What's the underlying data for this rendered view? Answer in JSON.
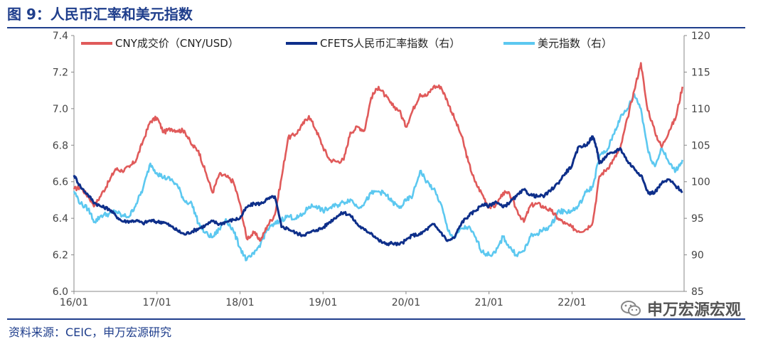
{
  "title": "图 9：人民币汇率和美元指数",
  "source": "资料来源：CEIC，申万宏源研究",
  "watermark": "申万宏源宏观",
  "chart_data": {
    "type": "line",
    "xlabels": [
      "16/01",
      "17/01",
      "18/01",
      "19/01",
      "20/01",
      "21/01",
      "22/01"
    ],
    "x_ticks": [
      2016,
      2017,
      2018,
      2019,
      2020,
      2021,
      2022
    ],
    "xlim": [
      2016,
      2023.35
    ],
    "left_axis": {
      "ylim": [
        6.0,
        7.4
      ],
      "ticks": [
        "6.0",
        "6.2",
        "6.4",
        "6.6",
        "6.8",
        "7.0",
        "7.2",
        "7.4"
      ]
    },
    "right_axis": {
      "ylim": [
        85,
        120
      ],
      "ticks": [
        "85",
        "90",
        "95",
        "100",
        "105",
        "110",
        "115",
        "120"
      ]
    },
    "series": [
      {
        "name": "CNY成交价（CNY/USD）",
        "axis": "left",
        "color": "#e05a5a",
        "points": [
          [
            2016.0,
            6.56
          ],
          [
            2016.08,
            6.57
          ],
          [
            2016.17,
            6.52
          ],
          [
            2016.25,
            6.47
          ],
          [
            2016.33,
            6.53
          ],
          [
            2016.42,
            6.6
          ],
          [
            2016.5,
            6.67
          ],
          [
            2016.58,
            6.66
          ],
          [
            2016.67,
            6.68
          ],
          [
            2016.75,
            6.72
          ],
          [
            2016.83,
            6.82
          ],
          [
            2016.92,
            6.93
          ],
          [
            2017.0,
            6.95
          ],
          [
            2017.08,
            6.87
          ],
          [
            2017.17,
            6.89
          ],
          [
            2017.25,
            6.88
          ],
          [
            2017.33,
            6.88
          ],
          [
            2017.42,
            6.8
          ],
          [
            2017.5,
            6.77
          ],
          [
            2017.58,
            6.66
          ],
          [
            2017.67,
            6.54
          ],
          [
            2017.75,
            6.64
          ],
          [
            2017.83,
            6.63
          ],
          [
            2017.92,
            6.6
          ],
          [
            2018.0,
            6.48
          ],
          [
            2018.08,
            6.29
          ],
          [
            2018.17,
            6.32
          ],
          [
            2018.25,
            6.28
          ],
          [
            2018.33,
            6.36
          ],
          [
            2018.42,
            6.42
          ],
          [
            2018.5,
            6.62
          ],
          [
            2018.58,
            6.84
          ],
          [
            2018.67,
            6.86
          ],
          [
            2018.75,
            6.91
          ],
          [
            2018.83,
            6.96
          ],
          [
            2018.92,
            6.88
          ],
          [
            2019.0,
            6.79
          ],
          [
            2019.08,
            6.72
          ],
          [
            2019.17,
            6.71
          ],
          [
            2019.25,
            6.72
          ],
          [
            2019.33,
            6.87
          ],
          [
            2019.42,
            6.9
          ],
          [
            2019.5,
            6.88
          ],
          [
            2019.58,
            7.06
          ],
          [
            2019.67,
            7.12
          ],
          [
            2019.75,
            7.07
          ],
          [
            2019.83,
            7.02
          ],
          [
            2019.92,
            6.99
          ],
          [
            2020.0,
            6.9
          ],
          [
            2020.08,
            6.99
          ],
          [
            2020.17,
            7.08
          ],
          [
            2020.25,
            7.07
          ],
          [
            2020.33,
            7.12
          ],
          [
            2020.42,
            7.12
          ],
          [
            2020.5,
            7.04
          ],
          [
            2020.58,
            6.95
          ],
          [
            2020.67,
            6.85
          ],
          [
            2020.75,
            6.71
          ],
          [
            2020.83,
            6.6
          ],
          [
            2020.92,
            6.53
          ],
          [
            2021.0,
            6.46
          ],
          [
            2021.08,
            6.47
          ],
          [
            2021.17,
            6.54
          ],
          [
            2021.25,
            6.53
          ],
          [
            2021.33,
            6.45
          ],
          [
            2021.42,
            6.38
          ],
          [
            2021.5,
            6.47
          ],
          [
            2021.58,
            6.48
          ],
          [
            2021.67,
            6.46
          ],
          [
            2021.75,
            6.44
          ],
          [
            2021.83,
            6.4
          ],
          [
            2021.92,
            6.37
          ],
          [
            2022.0,
            6.35
          ],
          [
            2022.08,
            6.33
          ],
          [
            2022.17,
            6.34
          ],
          [
            2022.25,
            6.38
          ],
          [
            2022.33,
            6.63
          ],
          [
            2022.42,
            6.67
          ],
          [
            2022.5,
            6.72
          ],
          [
            2022.58,
            6.78
          ],
          [
            2022.67,
            6.95
          ],
          [
            2022.75,
            7.1
          ],
          [
            2022.83,
            7.25
          ],
          [
            2022.9,
            7.02
          ],
          [
            2023.0,
            6.87
          ],
          [
            2023.08,
            6.79
          ],
          [
            2023.17,
            6.88
          ],
          [
            2023.25,
            6.95
          ],
          [
            2023.33,
            7.12
          ]
        ]
      },
      {
        "name": "CFETS人民币汇率指数（右）",
        "axis": "right",
        "color": "#0e2f8a",
        "points": [
          [
            2016.0,
            100.9
          ],
          [
            2016.08,
            99.3
          ],
          [
            2016.17,
            98.2
          ],
          [
            2016.25,
            97.1
          ],
          [
            2016.33,
            96.6
          ],
          [
            2016.42,
            96.3
          ],
          [
            2016.5,
            95.4
          ],
          [
            2016.58,
            94.6
          ],
          [
            2016.67,
            94.6
          ],
          [
            2016.75,
            94.7
          ],
          [
            2016.83,
            94.3
          ],
          [
            2016.92,
            94.7
          ],
          [
            2017.0,
            94.5
          ],
          [
            2017.08,
            94.5
          ],
          [
            2017.17,
            93.9
          ],
          [
            2017.25,
            93.3
          ],
          [
            2017.33,
            92.8
          ],
          [
            2017.42,
            93.2
          ],
          [
            2017.5,
            93.6
          ],
          [
            2017.58,
            94.0
          ],
          [
            2017.67,
            94.6
          ],
          [
            2017.75,
            94.2
          ],
          [
            2017.83,
            94.5
          ],
          [
            2017.92,
            94.8
          ],
          [
            2018.0,
            95.0
          ],
          [
            2018.08,
            96.5
          ],
          [
            2018.17,
            97.0
          ],
          [
            2018.25,
            97.0
          ],
          [
            2018.33,
            97.6
          ],
          [
            2018.42,
            98.0
          ],
          [
            2018.5,
            93.8
          ],
          [
            2018.58,
            93.6
          ],
          [
            2018.67,
            93.0
          ],
          [
            2018.75,
            92.7
          ],
          [
            2018.83,
            93.0
          ],
          [
            2018.92,
            93.4
          ],
          [
            2019.0,
            93.7
          ],
          [
            2019.08,
            94.5
          ],
          [
            2019.17,
            95.3
          ],
          [
            2019.25,
            95.8
          ],
          [
            2019.33,
            95.4
          ],
          [
            2019.42,
            94.1
          ],
          [
            2019.5,
            93.4
          ],
          [
            2019.58,
            93.0
          ],
          [
            2019.67,
            92.0
          ],
          [
            2019.75,
            91.5
          ],
          [
            2019.83,
            91.6
          ],
          [
            2019.92,
            91.4
          ],
          [
            2020.0,
            92.0
          ],
          [
            2020.08,
            92.7
          ],
          [
            2020.17,
            92.8
          ],
          [
            2020.25,
            93.5
          ],
          [
            2020.33,
            94.2
          ],
          [
            2020.42,
            93.1
          ],
          [
            2020.5,
            91.9
          ],
          [
            2020.58,
            92.3
          ],
          [
            2020.67,
            94.4
          ],
          [
            2020.75,
            95.3
          ],
          [
            2020.83,
            96.0
          ],
          [
            2020.92,
            96.9
          ],
          [
            2021.0,
            96.7
          ],
          [
            2021.08,
            97.3
          ],
          [
            2021.17,
            96.5
          ],
          [
            2021.25,
            97.2
          ],
          [
            2021.33,
            98.0
          ],
          [
            2021.42,
            98.9
          ],
          [
            2021.5,
            98.2
          ],
          [
            2021.58,
            98.0
          ],
          [
            2021.67,
            98.1
          ],
          [
            2021.75,
            98.9
          ],
          [
            2021.83,
            99.8
          ],
          [
            2021.92,
            101.2
          ],
          [
            2022.0,
            102.2
          ],
          [
            2022.08,
            104.8
          ],
          [
            2022.17,
            105.0
          ],
          [
            2022.25,
            106.2
          ],
          [
            2022.3,
            104.5
          ],
          [
            2022.33,
            102.5
          ],
          [
            2022.42,
            103.6
          ],
          [
            2022.5,
            104.0
          ],
          [
            2022.58,
            104.6
          ],
          [
            2022.67,
            102.8
          ],
          [
            2022.75,
            101.8
          ],
          [
            2022.83,
            100.9
          ],
          [
            2022.92,
            98.4
          ],
          [
            2023.0,
            98.6
          ],
          [
            2023.08,
            99.8
          ],
          [
            2023.17,
            100.3
          ],
          [
            2023.25,
            99.4
          ],
          [
            2023.33,
            98.7
          ]
        ]
      },
      {
        "name": "美元指数（右）",
        "axis": "right",
        "color": "#5cc8f0",
        "points": [
          [
            2016.0,
            98.7
          ],
          [
            2016.08,
            97.0
          ],
          [
            2016.17,
            96.3
          ],
          [
            2016.25,
            94.5
          ],
          [
            2016.33,
            95.4
          ],
          [
            2016.42,
            95.6
          ],
          [
            2016.5,
            96.0
          ],
          [
            2016.58,
            95.3
          ],
          [
            2016.67,
            95.3
          ],
          [
            2016.75,
            97.0
          ],
          [
            2016.83,
            99.0
          ],
          [
            2016.92,
            102.5
          ],
          [
            2017.0,
            101.2
          ],
          [
            2017.08,
            100.6
          ],
          [
            2017.17,
            100.3
          ],
          [
            2017.25,
            99.4
          ],
          [
            2017.33,
            97.4
          ],
          [
            2017.42,
            97.0
          ],
          [
            2017.5,
            94.3
          ],
          [
            2017.58,
            93.0
          ],
          [
            2017.67,
            92.4
          ],
          [
            2017.75,
            93.5
          ],
          [
            2017.83,
            94.9
          ],
          [
            2017.92,
            93.3
          ],
          [
            2018.0,
            91.0
          ],
          [
            2018.08,
            89.3
          ],
          [
            2018.17,
            90.1
          ],
          [
            2018.25,
            91.6
          ],
          [
            2018.33,
            93.5
          ],
          [
            2018.42,
            94.2
          ],
          [
            2018.5,
            94.8
          ],
          [
            2018.58,
            95.3
          ],
          [
            2018.67,
            95.0
          ],
          [
            2018.75,
            95.4
          ],
          [
            2018.83,
            96.6
          ],
          [
            2018.92,
            96.7
          ],
          [
            2019.0,
            96.0
          ],
          [
            2019.08,
            96.4
          ],
          [
            2019.17,
            96.8
          ],
          [
            2019.25,
            97.2
          ],
          [
            2019.33,
            97.6
          ],
          [
            2019.42,
            96.5
          ],
          [
            2019.5,
            97.1
          ],
          [
            2019.58,
            98.4
          ],
          [
            2019.67,
            98.7
          ],
          [
            2019.75,
            98.3
          ],
          [
            2019.83,
            97.3
          ],
          [
            2019.92,
            96.4
          ],
          [
            2020.0,
            97.4
          ],
          [
            2020.08,
            98.1
          ],
          [
            2020.17,
            101.5
          ],
          [
            2020.25,
            100.0
          ],
          [
            2020.33,
            99.0
          ],
          [
            2020.42,
            97.0
          ],
          [
            2020.5,
            93.5
          ],
          [
            2020.58,
            92.3
          ],
          [
            2020.67,
            93.6
          ],
          [
            2020.75,
            93.8
          ],
          [
            2020.83,
            92.5
          ],
          [
            2020.92,
            90.4
          ],
          [
            2021.0,
            90.0
          ],
          [
            2021.08,
            90.3
          ],
          [
            2021.17,
            92.5
          ],
          [
            2021.25,
            91.0
          ],
          [
            2021.33,
            90.0
          ],
          [
            2021.42,
            90.5
          ],
          [
            2021.5,
            92.5
          ],
          [
            2021.58,
            92.9
          ],
          [
            2021.67,
            93.5
          ],
          [
            2021.75,
            94.0
          ],
          [
            2021.83,
            96.0
          ],
          [
            2021.92,
            95.9
          ],
          [
            2022.0,
            96.0
          ],
          [
            2022.08,
            96.7
          ],
          [
            2022.17,
            98.6
          ],
          [
            2022.25,
            99.3
          ],
          [
            2022.33,
            103.5
          ],
          [
            2022.42,
            104.2
          ],
          [
            2022.5,
            106.5
          ],
          [
            2022.58,
            108.7
          ],
          [
            2022.67,
            110.0
          ],
          [
            2022.75,
            112.0
          ],
          [
            2022.83,
            110.0
          ],
          [
            2022.92,
            104.0
          ],
          [
            2023.0,
            102.1
          ],
          [
            2023.08,
            104.7
          ],
          [
            2023.17,
            102.5
          ],
          [
            2023.25,
            101.5
          ],
          [
            2023.33,
            103.0
          ]
        ]
      }
    ]
  }
}
